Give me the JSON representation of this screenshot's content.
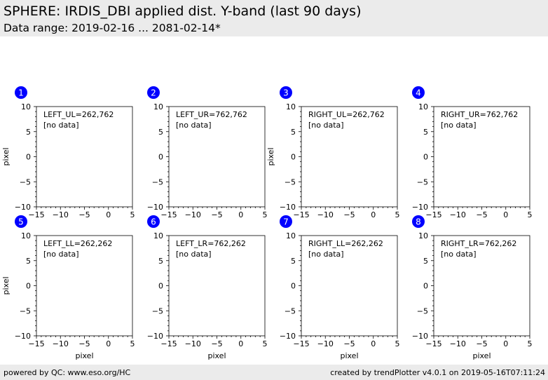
{
  "header": {
    "title": "SPHERE: IRDIS_DBI applied dist. Y-band (last 90 days)",
    "subtitle": "Data range: 2019-02-16 ... 2081-02-14*"
  },
  "footer": {
    "left": "powered by QC: www.eso.org/HC",
    "right": "created by trendPlotter v4.0.1 on 2019-05-16T07:11:24"
  },
  "colors": {
    "header_bg": "#ebebeb",
    "badge": "#0000ff",
    "badge_text": "#ffffff"
  },
  "chart_data": [
    {
      "type": "scatter",
      "badge": "1",
      "label": "LEFT_UL=262,762",
      "status": "[no data]",
      "xlabel": "",
      "ylabel": "pixel",
      "xlim": [
        -15,
        5
      ],
      "ylim": [
        -10,
        10
      ],
      "xticks": [
        -15,
        -10,
        -5,
        0,
        5
      ],
      "yticks": [
        -10,
        -5,
        0,
        5,
        10
      ],
      "xticklabels": [
        "−15",
        "−10",
        "−5",
        "0",
        "5"
      ],
      "yticklabels": [
        "−10",
        "−5",
        "0",
        "5",
        "10"
      ],
      "series": []
    },
    {
      "type": "scatter",
      "badge": "2",
      "label": "LEFT_UR=762,762",
      "status": "[no data]",
      "xlabel": "",
      "ylabel": "",
      "xlim": [
        -15,
        5
      ],
      "ylim": [
        -10,
        10
      ],
      "xticks": [
        -15,
        -10,
        -5,
        0,
        5
      ],
      "yticks": [
        -10,
        -5,
        0,
        5,
        10
      ],
      "xticklabels": [
        "−15",
        "−10",
        "−5",
        "0",
        "5"
      ],
      "yticklabels": [
        "−10",
        "−5",
        "0",
        "5",
        "10"
      ],
      "series": []
    },
    {
      "type": "scatter",
      "badge": "3",
      "label": "RIGHT_UL=262,762",
      "status": "[no data]",
      "xlabel": "",
      "ylabel": "pixel",
      "xlim": [
        -15,
        5
      ],
      "ylim": [
        -10,
        10
      ],
      "xticks": [
        -15,
        -10,
        -5,
        0,
        5
      ],
      "yticks": [
        -10,
        -5,
        0,
        5,
        10
      ],
      "xticklabels": [
        "−15",
        "−10",
        "−5",
        "0",
        "5"
      ],
      "yticklabels": [
        "−10",
        "−5",
        "0",
        "5",
        "10"
      ],
      "series": []
    },
    {
      "type": "scatter",
      "badge": "4",
      "label": "RIGHT_UR=762,762",
      "status": "[no data]",
      "xlabel": "",
      "ylabel": "",
      "xlim": [
        -15,
        5
      ],
      "ylim": [
        -10,
        10
      ],
      "xticks": [
        -15,
        -10,
        -5,
        0,
        5
      ],
      "yticks": [
        -10,
        -5,
        0,
        5,
        10
      ],
      "xticklabels": [
        "−15",
        "−10",
        "−5",
        "0",
        "5"
      ],
      "yticklabels": [
        "−10",
        "−5",
        "0",
        "5",
        "10"
      ],
      "series": []
    },
    {
      "type": "scatter",
      "badge": "5",
      "label": "LEFT_LL=262,262",
      "status": "[no data]",
      "xlabel": "pixel",
      "ylabel": "pixel",
      "xlim": [
        -15,
        5
      ],
      "ylim": [
        -10,
        10
      ],
      "xticks": [
        -15,
        -10,
        -5,
        0,
        5
      ],
      "yticks": [
        -10,
        -5,
        0,
        5,
        10
      ],
      "xticklabels": [
        "−15",
        "−10",
        "−5",
        "0",
        "5"
      ],
      "yticklabels": [
        "−10",
        "−5",
        "0",
        "5",
        "10"
      ],
      "series": []
    },
    {
      "type": "scatter",
      "badge": "6",
      "label": "LEFT_LR=762,262",
      "status": "[no data]",
      "xlabel": "pixel",
      "ylabel": "",
      "xlim": [
        -15,
        5
      ],
      "ylim": [
        -10,
        10
      ],
      "xticks": [
        -15,
        -10,
        -5,
        0,
        5
      ],
      "yticks": [
        -10,
        -5,
        0,
        5,
        10
      ],
      "xticklabels": [
        "−15",
        "−10",
        "−5",
        "0",
        "5"
      ],
      "yticklabels": [
        "−10",
        "−5",
        "0",
        "5",
        "10"
      ],
      "series": []
    },
    {
      "type": "scatter",
      "badge": "7",
      "label": "RIGHT_LL=262,262",
      "status": "[no data]",
      "xlabel": "pixel",
      "ylabel": "",
      "xlim": [
        -15,
        5
      ],
      "ylim": [
        -10,
        10
      ],
      "xticks": [
        -15,
        -10,
        -5,
        0,
        5
      ],
      "yticks": [
        -10,
        -5,
        0,
        5,
        10
      ],
      "xticklabels": [
        "−15",
        "−10",
        "−5",
        "0",
        "5"
      ],
      "yticklabels": [
        "−10",
        "−5",
        "0",
        "5",
        "10"
      ],
      "series": []
    },
    {
      "type": "scatter",
      "badge": "8",
      "label": "RIGHT_LR=762,262",
      "status": "[no data]",
      "xlabel": "pixel",
      "ylabel": "",
      "xlim": [
        -15,
        5
      ],
      "ylim": [
        -10,
        10
      ],
      "xticks": [
        -15,
        -10,
        -5,
        0,
        5
      ],
      "yticks": [
        -10,
        -5,
        0,
        5,
        10
      ],
      "xticklabels": [
        "−15",
        "−10",
        "−5",
        "0",
        "5"
      ],
      "yticklabels": [
        "−10",
        "−5",
        "0",
        "5",
        "10"
      ],
      "series": []
    }
  ]
}
